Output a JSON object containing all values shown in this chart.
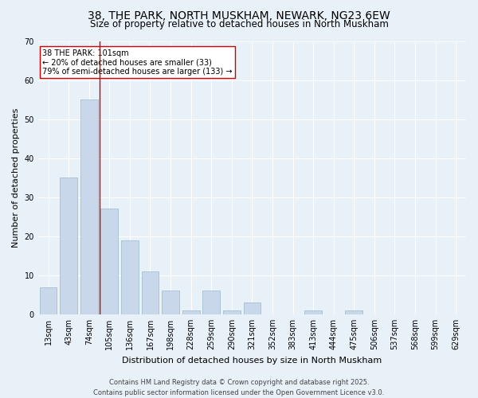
{
  "title1": "38, THE PARK, NORTH MUSKHAM, NEWARK, NG23 6EW",
  "title2": "Size of property relative to detached houses in North Muskham",
  "xlabel": "Distribution of detached houses by size in North Muskham",
  "ylabel": "Number of detached properties",
  "bar_color": "#c8d8ea",
  "bar_edgecolor": "#9ab8cc",
  "categories": [
    "13sqm",
    "43sqm",
    "74sqm",
    "105sqm",
    "136sqm",
    "167sqm",
    "198sqm",
    "228sqm",
    "259sqm",
    "290sqm",
    "321sqm",
    "352sqm",
    "383sqm",
    "413sqm",
    "444sqm",
    "475sqm",
    "506sqm",
    "537sqm",
    "568sqm",
    "599sqm",
    "629sqm"
  ],
  "values": [
    7,
    35,
    55,
    27,
    19,
    11,
    6,
    1,
    6,
    1,
    3,
    0,
    0,
    1,
    0,
    1,
    0,
    0,
    0,
    0,
    0
  ],
  "ylim": [
    0,
    70
  ],
  "yticks": [
    0,
    10,
    20,
    30,
    40,
    50,
    60,
    70
  ],
  "vline_index": 3,
  "vline_color": "#cc0000",
  "annotation_text": "38 THE PARK: 101sqm\n← 20% of detached houses are smaller (33)\n79% of semi-detached houses are larger (133) →",
  "annotation_box_color": "#ffffff",
  "annotation_box_edgecolor": "#cc0000",
  "footer1": "Contains HM Land Registry data © Crown copyright and database right 2025.",
  "footer2": "Contains public sector information licensed under the Open Government Licence v3.0.",
  "background_color": "#e8f0f8",
  "plot_bg_color": "#e8f0f8",
  "title_fontsize": 10,
  "subtitle_fontsize": 8.5,
  "xlabel_fontsize": 8,
  "ylabel_fontsize": 8,
  "tick_fontsize": 7,
  "footer_fontsize": 6,
  "annotation_fontsize": 7
}
